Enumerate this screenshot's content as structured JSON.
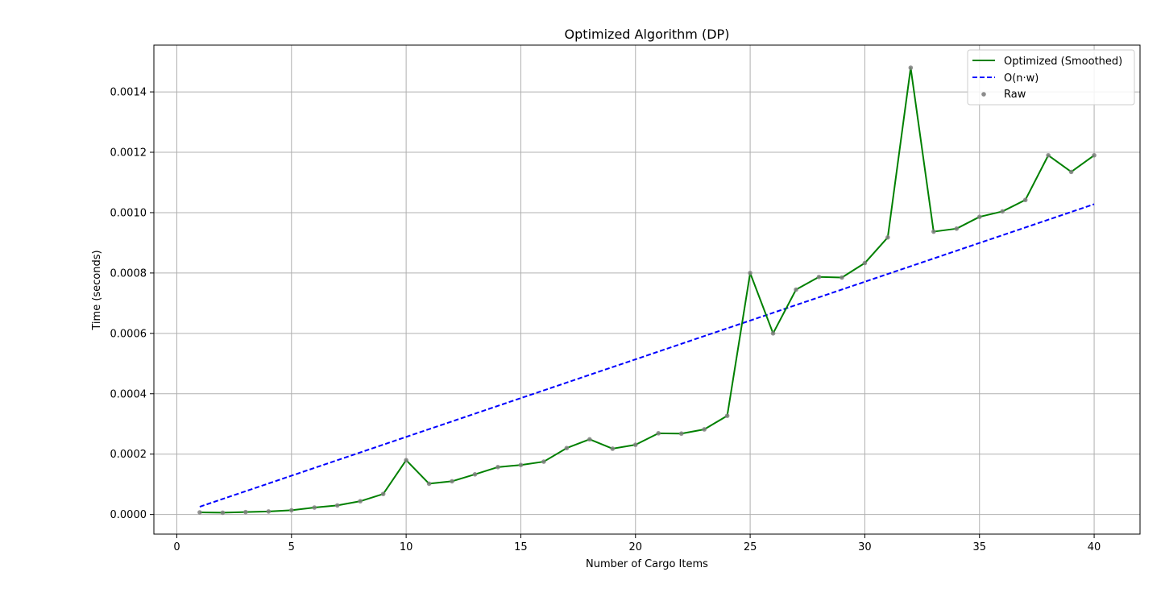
{
  "chart_data": {
    "type": "line",
    "title": "Optimized Algorithm (DP)",
    "xlabel": "Number of Cargo Items",
    "ylabel": "Time (seconds)",
    "xlim": [
      -1,
      42
    ],
    "ylim": [
      -6.5e-05,
      0.001555
    ],
    "xticks": [
      0,
      5,
      10,
      15,
      20,
      25,
      30,
      35,
      40
    ],
    "xtick_labels": [
      "0",
      "5",
      "10",
      "15",
      "20",
      "25",
      "30",
      "35",
      "40"
    ],
    "yticks": [
      0.0,
      0.0002,
      0.0004,
      0.0006,
      0.0008,
      0.001,
      0.0012,
      0.0014
    ],
    "ytick_labels": [
      "0.0000",
      "0.0002",
      "0.0004",
      "0.0006",
      "0.0008",
      "0.0010",
      "0.0012",
      "0.0014"
    ],
    "grid": true,
    "legend_position": "top-right",
    "x": [
      1,
      2,
      3,
      4,
      5,
      6,
      7,
      8,
      9,
      10,
      11,
      12,
      13,
      14,
      15,
      16,
      17,
      18,
      19,
      20,
      21,
      22,
      23,
      24,
      25,
      26,
      27,
      28,
      29,
      30,
      31,
      32,
      33,
      34,
      35,
      36,
      37,
      38,
      39,
      40
    ],
    "series": [
      {
        "name": "Optimized (Smoothed)",
        "style": "solid",
        "color": "#008000",
        "values": [
          7e-06,
          6e-06,
          8e-06,
          1e-05,
          1.4e-05,
          2.3e-05,
          3e-05,
          4.4e-05,
          6.8e-05,
          0.00018,
          0.000102,
          0.00011,
          0.000133,
          0.000157,
          0.000164,
          0.000175,
          0.00022,
          0.000249,
          0.000218,
          0.000231,
          0.000269,
          0.000268,
          0.000282,
          0.000327,
          0.0008,
          0.0006,
          0.000745,
          0.000787,
          0.000785,
          0.000833,
          0.000918,
          0.00148,
          0.000937,
          0.000947,
          0.000986,
          0.001004,
          0.001042,
          0.00119,
          0.001135,
          0.00119
        ]
      },
      {
        "name": "O(n·w)",
        "style": "dashed",
        "color": "#0000ff",
        "values_start": [
          1,
          2.57e-05
        ],
        "values_end": [
          40,
          0.001028
        ]
      },
      {
        "name": "Raw",
        "style": "scatter",
        "color": "#808080",
        "values": [
          7e-06,
          6e-06,
          8e-06,
          1e-05,
          1.4e-05,
          2.3e-05,
          3e-05,
          4.4e-05,
          6.8e-05,
          0.00018,
          0.000102,
          0.00011,
          0.000133,
          0.000157,
          0.000164,
          0.000175,
          0.00022,
          0.000249,
          0.000218,
          0.000231,
          0.000269,
          0.000268,
          0.000282,
          0.000327,
          0.0008,
          0.0006,
          0.000745,
          0.000787,
          0.000785,
          0.000833,
          0.000918,
          0.00148,
          0.000937,
          0.000947,
          0.000986,
          0.001004,
          0.001042,
          0.00119,
          0.001135,
          0.00119
        ]
      }
    ]
  }
}
